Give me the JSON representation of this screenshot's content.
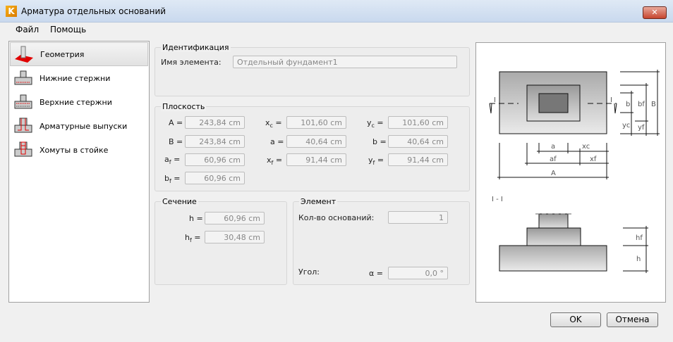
{
  "window": {
    "title": "Арматура отдельных оснований",
    "close_label": "✕"
  },
  "menu": [
    "Файл",
    "Помощь"
  ],
  "sidebar": {
    "items": [
      {
        "label": "Геометрия",
        "selected": true
      },
      {
        "label": "Нижние стержни"
      },
      {
        "label": "Верхние стержни"
      },
      {
        "label": "Арматурные выпуски"
      },
      {
        "label": "Хомуты в стойке"
      }
    ]
  },
  "identification": {
    "title": "Идентификация",
    "name_label": "Имя элемента:",
    "name_value": "Отдельный фундамент1"
  },
  "plane": {
    "title": "Плоскость",
    "fields": [
      {
        "label": "A =",
        "value": "243,84 cm"
      },
      {
        "label": "B =",
        "value": "243,84 cm"
      },
      {
        "label": "af =",
        "value": "60,96 cm"
      },
      {
        "label": "bf =",
        "value": "60,96 cm"
      },
      {
        "label": "xc =",
        "value": "101,60 cm"
      },
      {
        "label": "a =",
        "value": "40,64 cm"
      },
      {
        "label": "xf =",
        "value": "91,44 cm"
      },
      {
        "label": "yc =",
        "value": "101,60 cm"
      },
      {
        "label": "b =",
        "value": "40,64 cm"
      },
      {
        "label": "yf =",
        "value": "91,44 cm"
      }
    ]
  },
  "section": {
    "title": "Сечение",
    "h_label": "h =",
    "h_value": "60,96 cm",
    "hf_label": "hf =",
    "hf_value": "30,48 cm"
  },
  "element": {
    "title": "Элемент",
    "count_label": "Кол-во оснований:",
    "count_value": "1",
    "angle_label": "Угол:",
    "angle_symbol": "α =",
    "angle_value": "0,0 °"
  },
  "diagram": {
    "labels": {
      "I": "I",
      "B": "B",
      "b": "b",
      "bf": "bf",
      "yc": "yc",
      "yf": "yf",
      "a": "a",
      "xc": "xc",
      "af": "af",
      "xf": "xf",
      "A": "A",
      "section": "I - I",
      "hf": "hf",
      "h": "h"
    }
  },
  "buttons": {
    "ok": "OK",
    "cancel": "Отмена"
  },
  "colors": {
    "accent_red": "#e00000",
    "titlebar": "#c9d9ee"
  }
}
